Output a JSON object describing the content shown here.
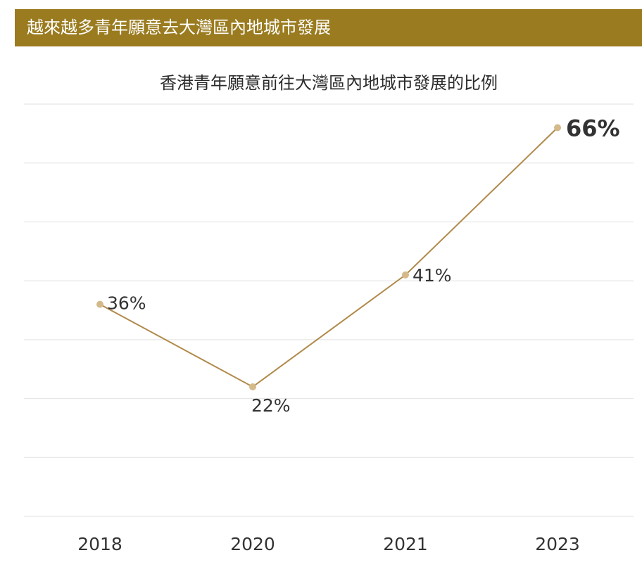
{
  "banner": {
    "title": "越來越多青年願意去大灣區內地城市發展"
  },
  "colors": {
    "banner_bg": "#9a7b1f",
    "line": "#b08a4a",
    "marker": "#d4b98a",
    "grid": "#e2e2e2",
    "text": "#333333"
  },
  "chart_data": {
    "type": "line",
    "title": "香港青年願意前往大灣區內地城市發展的比例",
    "xlabel": "",
    "ylabel": "",
    "categories": [
      "2018",
      "2020",
      "2021",
      "2023"
    ],
    "series": [
      {
        "values": [
          36,
          22,
          41,
          66
        ],
        "labels": [
          "36%",
          "22%",
          "41%",
          "66%"
        ]
      }
    ],
    "ylim": [
      0,
      70
    ],
    "grid": true,
    "legend": "none"
  }
}
